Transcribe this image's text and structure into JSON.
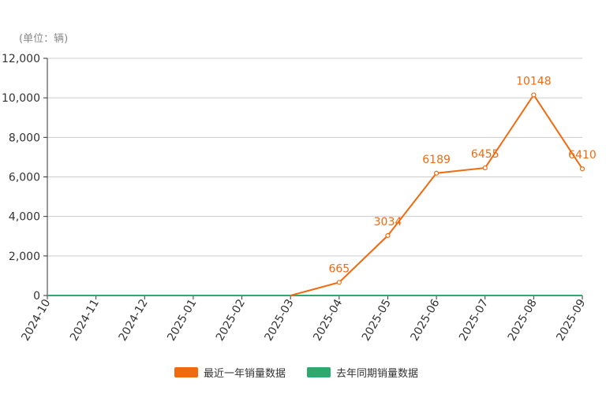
{
  "chart_data": {
    "type": "line",
    "unit_label": "(单位：辆)",
    "categories": [
      "2024-10",
      "2024-11",
      "2024-12",
      "2025-01",
      "2025-02",
      "2025-03",
      "2025-04",
      "2025-05",
      "2025-06",
      "2025-07",
      "2025-08",
      "2025-09"
    ],
    "ylim": [
      0,
      12000
    ],
    "yticks": [
      0,
      2000,
      4000,
      6000,
      8000,
      10000,
      12000
    ],
    "ytick_labels": [
      "0",
      "2,000",
      "4,000",
      "6,000",
      "8,000",
      "10,000",
      "12,000"
    ],
    "grid": true,
    "legend_position": "bottom-center",
    "series": [
      {
        "name": "最近一年销量数据",
        "color": "#f06a0f",
        "values": [
          null,
          null,
          null,
          null,
          null,
          0,
          665,
          3034,
          6189,
          6455,
          10148,
          6410
        ],
        "labels": [
          null,
          null,
          null,
          null,
          null,
          null,
          "665",
          "3034",
          "6189",
          "6455",
          "10148",
          "6410"
        ]
      },
      {
        "name": "去年同期销量数据",
        "color": "#2eaa6e",
        "values": [
          0,
          0,
          0,
          0,
          0,
          0,
          0,
          0,
          0,
          0,
          0,
          0
        ],
        "labels": []
      }
    ]
  }
}
